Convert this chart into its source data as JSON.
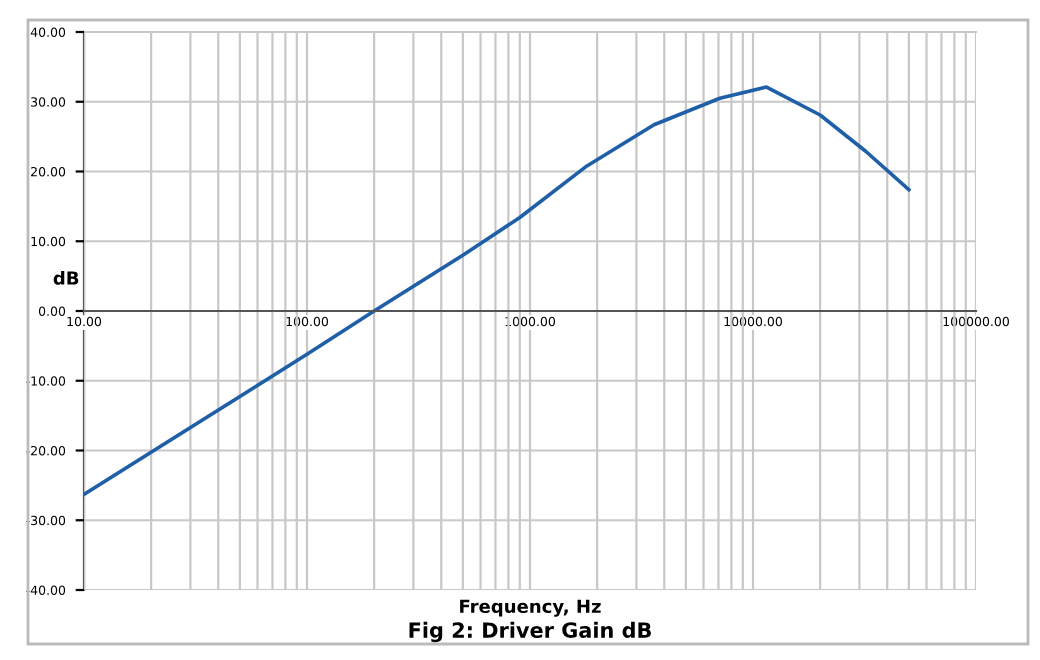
{
  "chart_data": {
    "type": "line",
    "xlabel": "Frequency, Hz",
    "ylabel": "dB",
    "annotations": [
      "Fig 2: Driver Gain dB"
    ],
    "x": [
      10,
      100,
      200,
      500,
      900,
      1800,
      3600,
      7100,
      11500,
      20000,
      32000,
      50000
    ],
    "series": [
      {
        "color": "#1f5fa8",
        "values": [
          -26.3,
          -6.2,
          0,
          8,
          13.4,
          20.8,
          26.7,
          30.5,
          32.1,
          28.1,
          22.9,
          17.4
        ]
      }
    ],
    "log": "x",
    "xlim": [
      10,
      100000
    ],
    "ylim": [
      -40,
      40
    ],
    "xticks": [
      {
        "value": 10,
        "label": "10.00"
      },
      {
        "value": 100,
        "label": "100.00"
      },
      {
        "value": 1000,
        "label": "1000.00"
      },
      {
        "value": 10000,
        "label": "10000.00"
      },
      {
        "value": 100000,
        "label": "100000.00"
      }
    ],
    "yticks": [
      {
        "value": -40,
        "label": "-40.00"
      },
      {
        "value": -30,
        "label": "-30.00"
      },
      {
        "value": -20,
        "label": "-20.00"
      },
      {
        "value": -10,
        "label": "-10.00"
      },
      {
        "value": 0,
        "label": "0.00"
      },
      {
        "value": 10,
        "label": "10.00"
      },
      {
        "value": 20,
        "label": "20.00"
      },
      {
        "value": 30,
        "label": "30.00"
      },
      {
        "value": 40,
        "label": "40.00"
      }
    ],
    "grid": true,
    "marker": "none",
    "line_style": "solid"
  }
}
